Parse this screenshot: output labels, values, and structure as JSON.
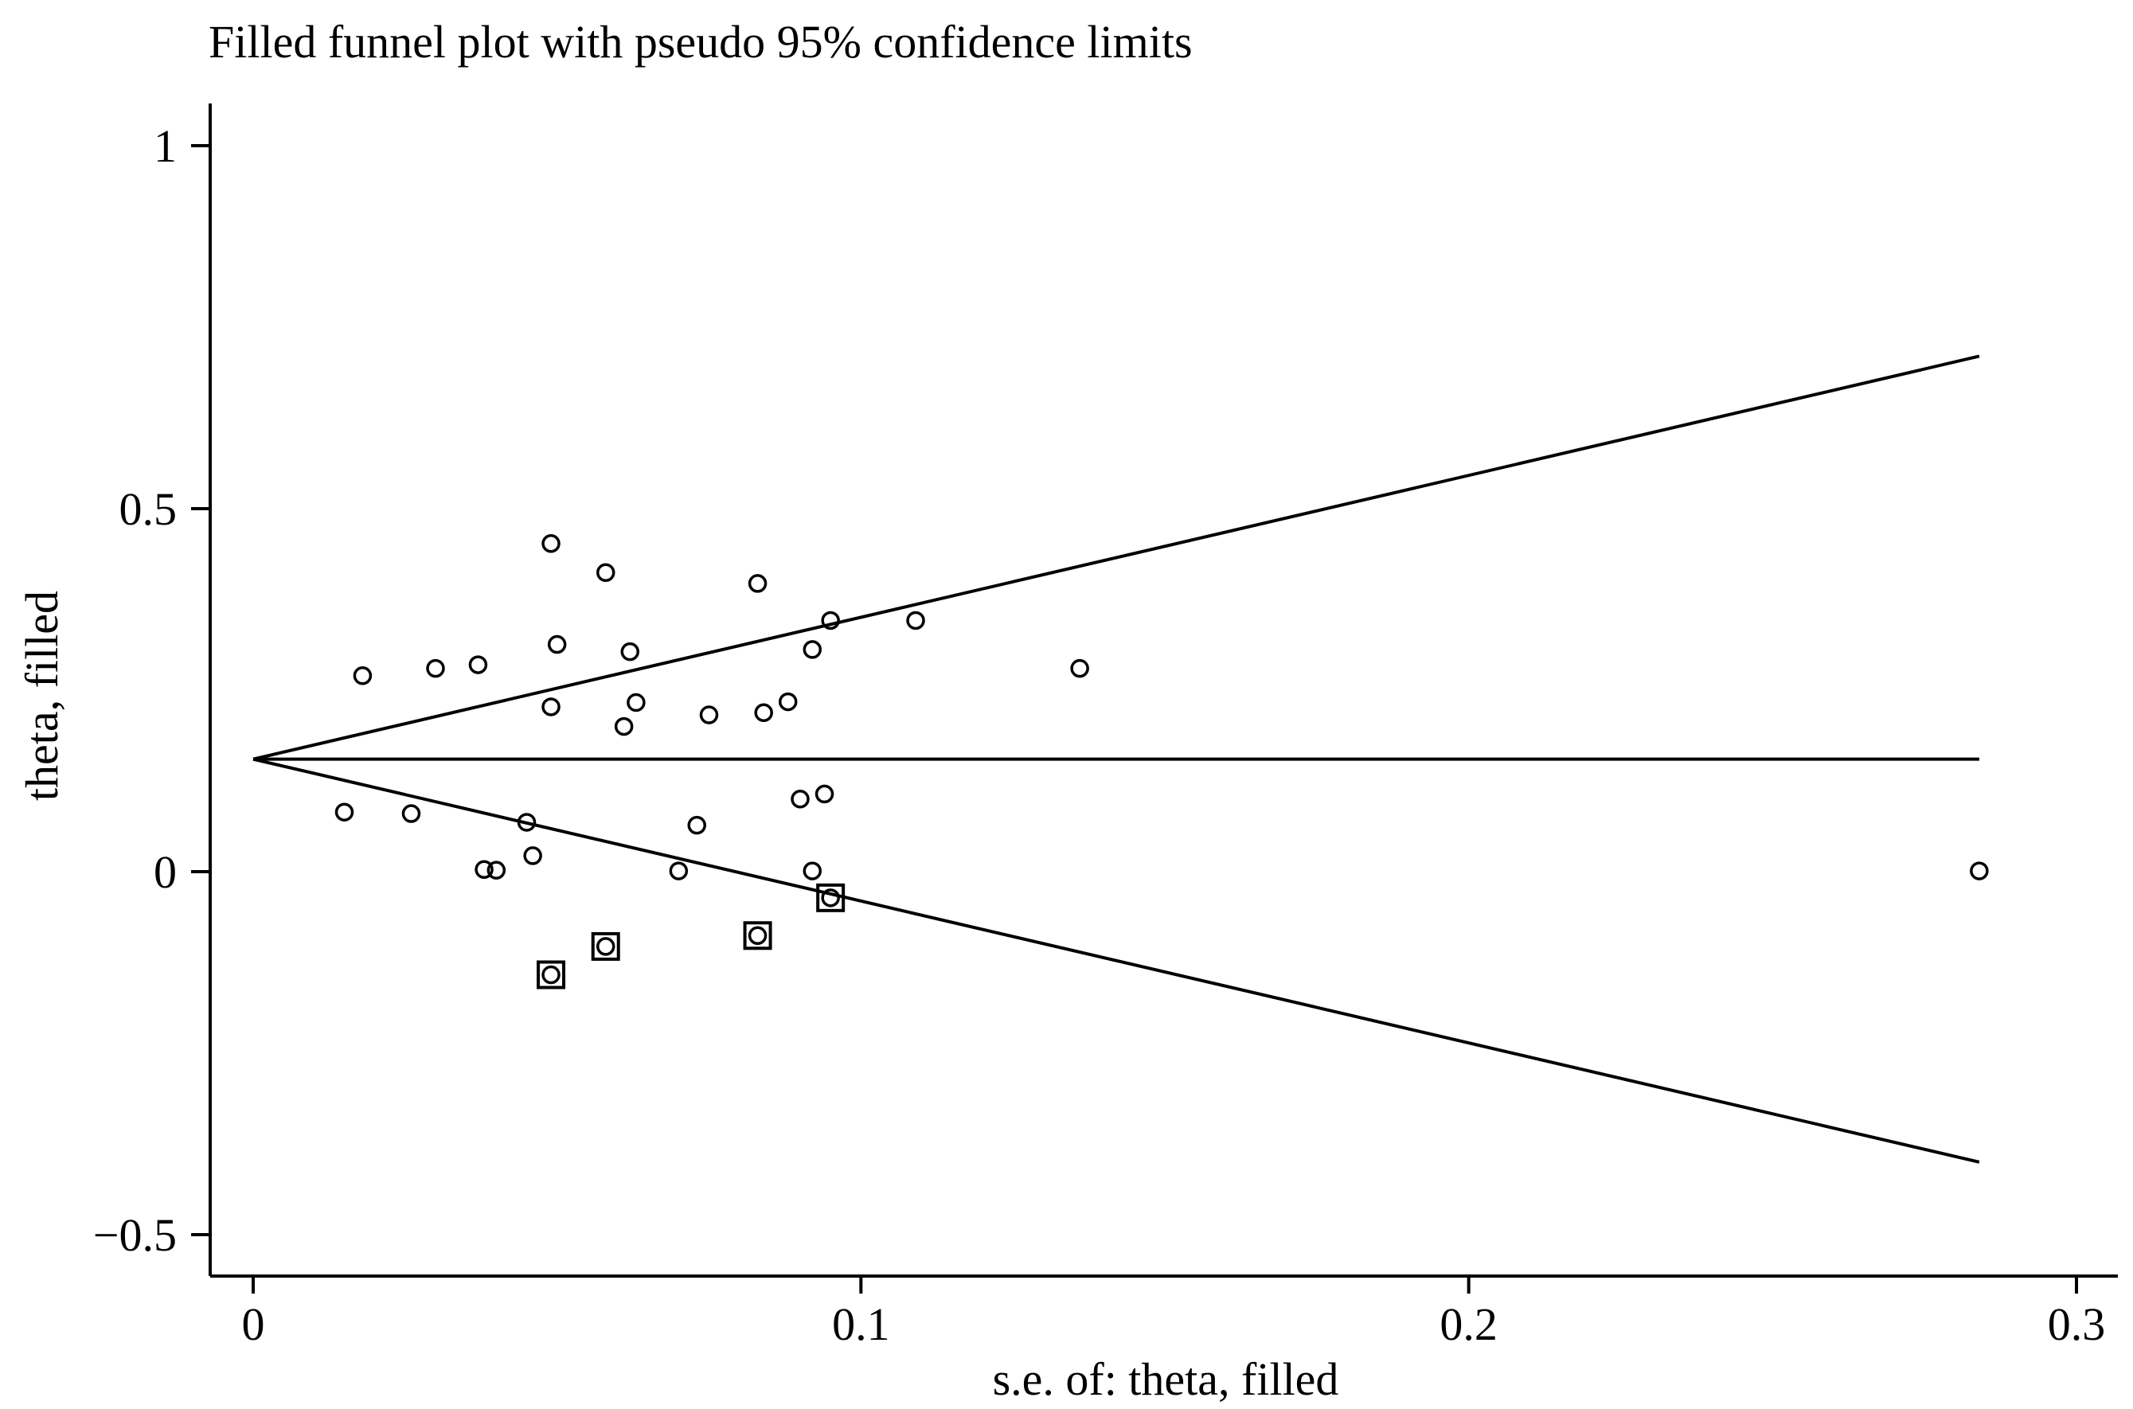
{
  "chart_data": {
    "type": "scatter",
    "title": "Filled funnel plot with pseudo 95% confidence limits",
    "xlabel": "s.e. of: theta, filled",
    "ylabel": "theta, filled",
    "xlim": [
      0,
      0.3
    ],
    "ylim": [
      -0.5,
      1
    ],
    "xticks": [
      {
        "value": 0,
        "label": "0"
      },
      {
        "value": 0.1,
        "label": "0.1"
      },
      {
        "value": 0.2,
        "label": "0.2"
      },
      {
        "value": 0.3,
        "label": "0.3"
      }
    ],
    "yticks": [
      {
        "value": -0.5,
        "label": "−0.5"
      },
      {
        "value": 0,
        "label": "0"
      },
      {
        "value": 0.5,
        "label": "0.5"
      },
      {
        "value": 1,
        "label": "1"
      }
    ],
    "pooled_estimate": 0.155,
    "max_se": 0.284,
    "ci_upper_end": 0.71,
    "ci_lower_end": -0.4,
    "observed": [
      {
        "x": 0.015,
        "y": 0.082
      },
      {
        "x": 0.018,
        "y": 0.27
      },
      {
        "x": 0.026,
        "y": 0.08
      },
      {
        "x": 0.03,
        "y": 0.28
      },
      {
        "x": 0.037,
        "y": 0.285
      },
      {
        "x": 0.038,
        "y": 0.003
      },
      {
        "x": 0.04,
        "y": 0.002
      },
      {
        "x": 0.045,
        "y": 0.068
      },
      {
        "x": 0.046,
        "y": 0.022
      },
      {
        "x": 0.049,
        "y": 0.452
      },
      {
        "x": 0.049,
        "y": 0.227
      },
      {
        "x": 0.05,
        "y": 0.313
      },
      {
        "x": 0.058,
        "y": 0.412
      },
      {
        "x": 0.061,
        "y": 0.2
      },
      {
        "x": 0.062,
        "y": 0.303
      },
      {
        "x": 0.063,
        "y": 0.233
      },
      {
        "x": 0.07,
        "y": 0.001
      },
      {
        "x": 0.073,
        "y": 0.064
      },
      {
        "x": 0.075,
        "y": 0.216
      },
      {
        "x": 0.083,
        "y": 0.397
      },
      {
        "x": 0.084,
        "y": 0.219
      },
      {
        "x": 0.088,
        "y": 0.234
      },
      {
        "x": 0.09,
        "y": 0.1
      },
      {
        "x": 0.092,
        "y": 0.306
      },
      {
        "x": 0.092,
        "y": 0.001
      },
      {
        "x": 0.094,
        "y": 0.107
      },
      {
        "x": 0.095,
        "y": 0.346
      },
      {
        "x": 0.109,
        "y": 0.346
      },
      {
        "x": 0.136,
        "y": 0.28
      },
      {
        "x": 0.284,
        "y": 0.001
      }
    ],
    "filled": [
      {
        "x": 0.049,
        "y": -0.142
      },
      {
        "x": 0.058,
        "y": -0.103
      },
      {
        "x": 0.083,
        "y": -0.088
      },
      {
        "x": 0.095,
        "y": -0.036
      }
    ]
  }
}
